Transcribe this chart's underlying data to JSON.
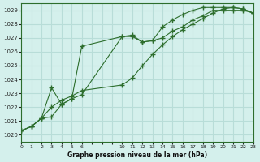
{
  "title": "Graphe pression niveau de la mer (hPa)",
  "background_color": "#d4f0ec",
  "grid_color": "#b8ddd8",
  "line_color": "#2d6e2d",
  "xlim": [
    0,
    23
  ],
  "ylim": [
    1019.5,
    1029.5
  ],
  "yticks": [
    1020,
    1021,
    1022,
    1023,
    1024,
    1025,
    1026,
    1027,
    1028,
    1029
  ],
  "xtick_positions": [
    0,
    1,
    2,
    3,
    4,
    5,
    6,
    7,
    8,
    9,
    10,
    11,
    12,
    13,
    14,
    15,
    16,
    17,
    18,
    19,
    20,
    21,
    22,
    23
  ],
  "xtick_labels": [
    "0",
    "1",
    "2",
    "3",
    "4",
    "5",
    "6",
    "",
    "",
    "",
    "10",
    "11",
    "12",
    "13",
    "14",
    "15",
    "16",
    "17",
    "18",
    "19",
    "20",
    "21",
    "22",
    "23"
  ],
  "series1_x": [
    0,
    1,
    2,
    3,
    4,
    5,
    6,
    10,
    11,
    12,
    13,
    14,
    15,
    16,
    17,
    18,
    19,
    20,
    21,
    22,
    23
  ],
  "series1_y": [
    1020.3,
    1020.6,
    1021.2,
    1021.3,
    1022.2,
    1022.6,
    1026.4,
    1027.1,
    1027.2,
    1026.7,
    1026.8,
    1027.0,
    1027.5,
    1027.8,
    1028.3,
    1028.6,
    1029.0,
    1029.0,
    1029.0,
    1029.0,
    1028.8
  ],
  "series2_x": [
    0,
    1,
    2,
    3,
    4,
    5,
    6,
    10,
    11,
    12,
    13,
    14,
    15,
    16,
    17,
    18,
    19,
    20,
    21,
    22,
    23
  ],
  "series2_y": [
    1020.3,
    1020.6,
    1021.2,
    1022.0,
    1022.5,
    1022.8,
    1023.2,
    1023.6,
    1024.1,
    1025.0,
    1025.8,
    1026.5,
    1027.1,
    1027.6,
    1028.0,
    1028.4,
    1028.8,
    1029.1,
    1029.2,
    1029.1,
    1028.8
  ],
  "series3_x": [
    0,
    1,
    2,
    3,
    4,
    5,
    6,
    10,
    11,
    12,
    13,
    14,
    15,
    16,
    17,
    18,
    19,
    20,
    21,
    22,
    23
  ],
  "series3_y": [
    1020.3,
    1020.6,
    1021.2,
    1023.4,
    1022.2,
    1022.6,
    1022.9,
    1027.1,
    1027.1,
    1026.7,
    1026.8,
    1027.8,
    1028.3,
    1028.7,
    1029.0,
    1029.2,
    1029.2,
    1029.2,
    1029.2,
    1029.1,
    1028.8
  ]
}
